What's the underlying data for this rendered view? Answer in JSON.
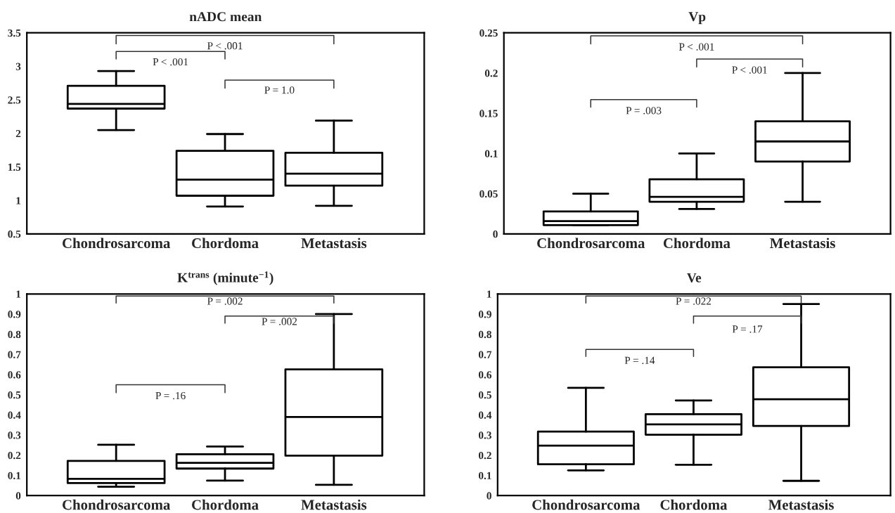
{
  "chart_data": [
    {
      "type": "box",
      "title": "nADC mean",
      "categories": [
        "Chondrosarcoma",
        "Chordoma",
        "Metastasis"
      ],
      "boxes": [
        {
          "low": 2.05,
          "q1": 2.37,
          "median": 2.44,
          "q3": 2.71,
          "high": 2.93
        },
        {
          "low": 0.91,
          "q1": 1.07,
          "median": 1.31,
          "q3": 1.74,
          "high": 1.99
        },
        {
          "low": 0.92,
          "q1": 1.22,
          "median": 1.4,
          "q3": 1.71,
          "high": 2.19
        }
      ],
      "ylim": [
        0.5,
        3.5
      ],
      "yticks": [
        0.5,
        1,
        1.5,
        2,
        2.5,
        3,
        3.5
      ],
      "annotations": [
        "P < .001",
        "P < .001",
        "P = 1.0"
      ]
    },
    {
      "type": "box",
      "title": "Vp",
      "categories": [
        "Chondrosarcoma",
        "Chordoma",
        "Metastasis"
      ],
      "boxes": [
        {
          "low": 0.011,
          "q1": 0.011,
          "median": 0.016,
          "q3": 0.028,
          "high": 0.05
        },
        {
          "low": 0.031,
          "q1": 0.04,
          "median": 0.046,
          "q3": 0.068,
          "high": 0.1
        },
        {
          "low": 0.04,
          "q1": 0.09,
          "median": 0.115,
          "q3": 0.14,
          "high": 0.2
        }
      ],
      "ylim": [
        0,
        0.25
      ],
      "yticks": [
        0,
        0.05,
        0.1,
        0.15,
        0.2,
        0.25
      ],
      "annotations": [
        "P < .001",
        "P < .001",
        "P = .003"
      ]
    },
    {
      "type": "box",
      "title": "K$^{trans}$ (minute$^{−1}$)",
      "categories": [
        "Chondrosarcoma",
        "Chordoma",
        "Metastasis"
      ],
      "boxes": [
        {
          "low": 0.044,
          "q1": 0.062,
          "median": 0.083,
          "q3": 0.172,
          "high": 0.252
        },
        {
          "low": 0.074,
          "q1": 0.134,
          "median": 0.162,
          "q3": 0.205,
          "high": 0.243
        },
        {
          "low": 0.053,
          "q1": 0.198,
          "median": 0.39,
          "q3": 0.626,
          "high": 0.9
        }
      ],
      "ylim": [
        0,
        1
      ],
      "yticks": [
        0,
        0.1,
        0.2,
        0.3,
        0.4,
        0.5,
        0.6,
        0.7,
        0.8,
        0.9,
        1
      ],
      "annotations": [
        "P = .002",
        "P = .002",
        "P = .16"
      ]
    },
    {
      "type": "box",
      "title": "Ve",
      "categories": [
        "Chondrosarcoma",
        "Chordoma",
        "Metastasis"
      ],
      "boxes": [
        {
          "low": 0.125,
          "q1": 0.155,
          "median": 0.248,
          "q3": 0.317,
          "high": 0.534
        },
        {
          "low": 0.153,
          "q1": 0.302,
          "median": 0.353,
          "q3": 0.404,
          "high": 0.472
        },
        {
          "low": 0.073,
          "q1": 0.345,
          "median": 0.478,
          "q3": 0.636,
          "high": 0.95
        }
      ],
      "ylim": [
        0,
        1
      ],
      "yticks": [
        0,
        0.1,
        0.2,
        0.3,
        0.4,
        0.5,
        0.6,
        0.7,
        0.8,
        0.9,
        1
      ],
      "annotations": [
        "P = .022",
        "P = .17",
        "P = .14"
      ]
    }
  ]
}
